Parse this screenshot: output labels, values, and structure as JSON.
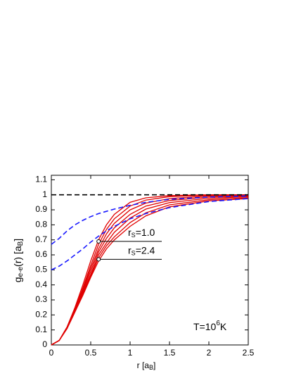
{
  "chart_data": {
    "type": "line",
    "x": [
      0,
      0.1,
      0.2,
      0.3,
      0.4,
      0.5,
      0.6,
      0.7,
      0.8,
      1.0,
      1.2,
      1.5,
      2.0,
      2.5
    ],
    "series": [
      {
        "color": "#e00000",
        "dash": false,
        "values": [
          0,
          0.03,
          0.12,
          0.25,
          0.4,
          0.56,
          0.7,
          0.8,
          0.87,
          0.95,
          0.98,
          0.995,
          1.0,
          1.0
        ]
      },
      {
        "color": "#e00000",
        "dash": false,
        "values": [
          0,
          0.03,
          0.12,
          0.24,
          0.38,
          0.53,
          0.67,
          0.77,
          0.84,
          0.925,
          0.965,
          0.988,
          0.997,
          0.999
        ]
      },
      {
        "color": "#e00000",
        "dash": false,
        "values": [
          0,
          0.03,
          0.115,
          0.235,
          0.37,
          0.51,
          0.64,
          0.74,
          0.81,
          0.9,
          0.945,
          0.975,
          0.992,
          0.997
        ]
      },
      {
        "color": "#e00000",
        "dash": false,
        "values": [
          0,
          0.03,
          0.115,
          0.23,
          0.36,
          0.49,
          0.62,
          0.71,
          0.78,
          0.87,
          0.925,
          0.962,
          0.985,
          0.993
        ]
      },
      {
        "color": "#e00000",
        "dash": false,
        "values": [
          0,
          0.03,
          0.11,
          0.225,
          0.35,
          0.47,
          0.6,
          0.68,
          0.75,
          0.845,
          0.905,
          0.948,
          0.977,
          0.988
        ]
      },
      {
        "color": "#e00000",
        "dash": false,
        "values": [
          0,
          0.03,
          0.11,
          0.22,
          0.34,
          0.46,
          0.58,
          0.66,
          0.72,
          0.815,
          0.88,
          0.933,
          0.968,
          0.981
        ]
      },
      {
        "color": "#e00000",
        "dash": false,
        "values": [
          0,
          0.03,
          0.11,
          0.22,
          0.33,
          0.45,
          0.56,
          0.64,
          0.7,
          0.79,
          0.86,
          0.92,
          0.96,
          0.975
        ]
      },
      {
        "color": "#1a1aff",
        "dash": true,
        "values": [
          0.67,
          0.71,
          0.76,
          0.8,
          0.83,
          0.855,
          0.875,
          0.89,
          0.905,
          0.93,
          0.95,
          0.97,
          0.985,
          0.992
        ]
      },
      {
        "color": "#1a1aff",
        "dash": true,
        "values": [
          0.5,
          0.525,
          0.56,
          0.6,
          0.64,
          0.685,
          0.725,
          0.76,
          0.79,
          0.84,
          0.875,
          0.915,
          0.955,
          0.975
        ]
      },
      {
        "color": "#000000",
        "dash": true,
        "values": [
          1,
          1,
          1,
          1,
          1,
          1,
          1,
          1,
          1,
          1,
          1,
          1,
          1,
          1
        ]
      }
    ],
    "xlim": [
      0,
      2.5
    ],
    "ylim": [
      0,
      1.13
    ],
    "xticks": [
      0,
      0.5,
      1,
      1.5,
      2,
      2.5
    ],
    "yticks": [
      0,
      0.1,
      0.2,
      0.3,
      0.4,
      0.5,
      0.6,
      0.7,
      0.8,
      0.9,
      1,
      1.1
    ],
    "x_label": {
      "text": "r [a",
      "sub": "B",
      "rest": "]"
    },
    "y_label": {
      "text": "g",
      "sub": "e-e",
      "rest": "(r) [a",
      "sub2": "B",
      "rest2": "]"
    },
    "markers": [
      {
        "x": 0.6,
        "y": 0.69,
        "text": "r",
        "sub": "S",
        "rest": "=1.0"
      },
      {
        "x": 0.6,
        "y": 0.57,
        "text": "r",
        "sub": "S",
        "rest": "=2.4"
      }
    ],
    "annotation": {
      "text": "T=10",
      "sup": "6",
      "rest": "K"
    }
  }
}
